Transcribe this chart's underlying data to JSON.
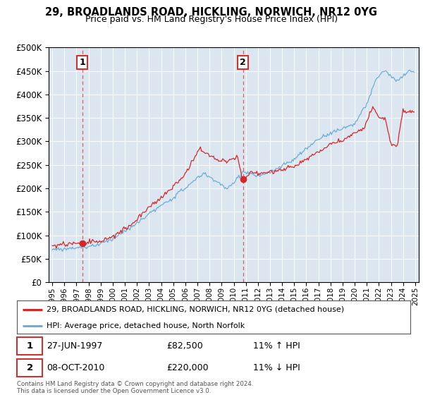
{
  "title": "29, BROADLANDS ROAD, HICKLING, NORWICH, NR12 0YG",
  "subtitle": "Price paid vs. HM Land Registry's House Price Index (HPI)",
  "legend_line1": "29, BROADLANDS ROAD, HICKLING, NORWICH, NR12 0YG (detached house)",
  "legend_line2": "HPI: Average price, detached house, North Norfolk",
  "footnote": "Contains HM Land Registry data © Crown copyright and database right 2024.\nThis data is licensed under the Open Government Licence v3.0.",
  "hpi_color": "#6baed6",
  "price_color": "#d62728",
  "marker_color": "#d62728",
  "bg_color": "#dce6f1",
  "annotation1": {
    "label": "1",
    "date": "27-JUN-1997",
    "price": "£82,500",
    "hpi_note": "11% ↑ HPI"
  },
  "annotation2": {
    "label": "2",
    "date": "08-OCT-2010",
    "price": "£220,000",
    "hpi_note": "11% ↓ HPI"
  },
  "sale1_year": 1997.49,
  "sale1_price": 82500,
  "sale2_year": 2010.77,
  "sale2_price": 220000,
  "ylim": [
    0,
    500000
  ],
  "yticks": [
    0,
    50000,
    100000,
    150000,
    200000,
    250000,
    300000,
    350000,
    400000,
    450000,
    500000
  ],
  "xlim": [
    1994.7,
    2025.3
  ]
}
